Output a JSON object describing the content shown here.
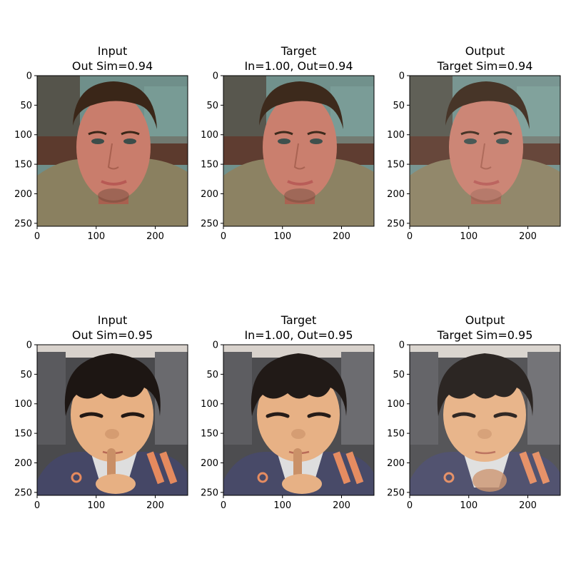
{
  "chart_data": {
    "type": "image-grid",
    "xticks": [
      0,
      100,
      200
    ],
    "yticks": [
      0,
      50,
      100,
      150,
      200,
      250
    ],
    "xlim": [
      0,
      255
    ],
    "ylim": [
      255,
      0
    ],
    "grid": false,
    "rows": [
      {
        "name": "row-1",
        "subject": "adult man in sweater",
        "panels": [
          {
            "title_line1": "Input",
            "title_line2": "Out Sim=0.94",
            "variant": "input"
          },
          {
            "title_line1": "Target",
            "title_line2": "In=1.00, Out=0.94",
            "variant": "target"
          },
          {
            "title_line1": "Output",
            "title_line2": "Target Sim=0.94",
            "variant": "output"
          }
        ],
        "colors": {
          "sky": "#6f8f8a",
          "wall": "#5c3a2d",
          "skin": "#c97d6c",
          "skin_shadow": "#a8604f",
          "hair": "#3a2618",
          "sweater": "#8a8060",
          "lips": "#b85a55",
          "eye": "#3c4d4a"
        }
      },
      {
        "name": "row-2",
        "subject": "young child with finger on lips",
        "panels": [
          {
            "title_line1": "Input",
            "title_line2": "Out Sim=0.95",
            "variant": "input"
          },
          {
            "title_line1": "Target",
            "title_line2": "In=1.00, Out=0.95",
            "variant": "target"
          },
          {
            "title_line1": "Output",
            "title_line2": "Target Sim=0.95",
            "variant": "output"
          }
        ],
        "colors": {
          "background": "#4a4a4d",
          "skin": "#e7b083",
          "skin_shadow": "#c98f66",
          "hair": "#1d1613",
          "jacket": "#454766",
          "stripe": "#e58a5e",
          "shirt": "#dedede",
          "eye": "#221814"
        }
      }
    ]
  }
}
